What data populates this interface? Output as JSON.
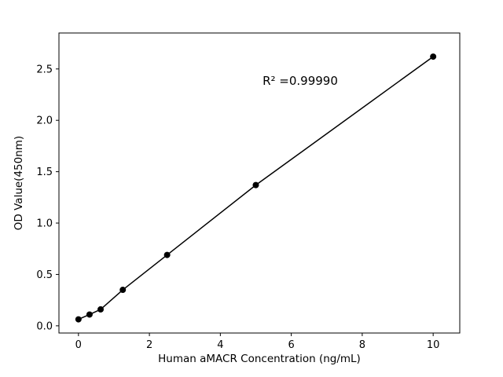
{
  "chart_data": {
    "type": "scatter",
    "title": "",
    "xlabel": "Human aMACR Concentration (ng/mL)",
    "ylabel": "OD Value(450nm)",
    "annotation": "R² =0.99990",
    "x": [
      0,
      0.3125,
      0.625,
      1.25,
      2.5,
      5,
      10
    ],
    "y": [
      0.063,
      0.11,
      0.16,
      0.35,
      0.69,
      1.37,
      2.62
    ],
    "xlim": [
      -0.55,
      10.75
    ],
    "ylim": [
      -0.07,
      2.85
    ],
    "xticks": {
      "values": [
        0,
        2,
        4,
        6,
        8,
        10
      ],
      "labels": [
        "0",
        "2",
        "4",
        "6",
        "8",
        "10"
      ]
    },
    "yticks": {
      "values": [
        0,
        0.5,
        1,
        1.5,
        2,
        2.5
      ],
      "labels": [
        "0.0",
        "0.5",
        "1.0",
        "1.5",
        "2.0",
        "2.5"
      ]
    },
    "line": true,
    "grid": false,
    "legend": null,
    "marker_color": "#000000",
    "line_color": "#000000",
    "spine_color": "#000000",
    "background_color": "#ffffff"
  }
}
